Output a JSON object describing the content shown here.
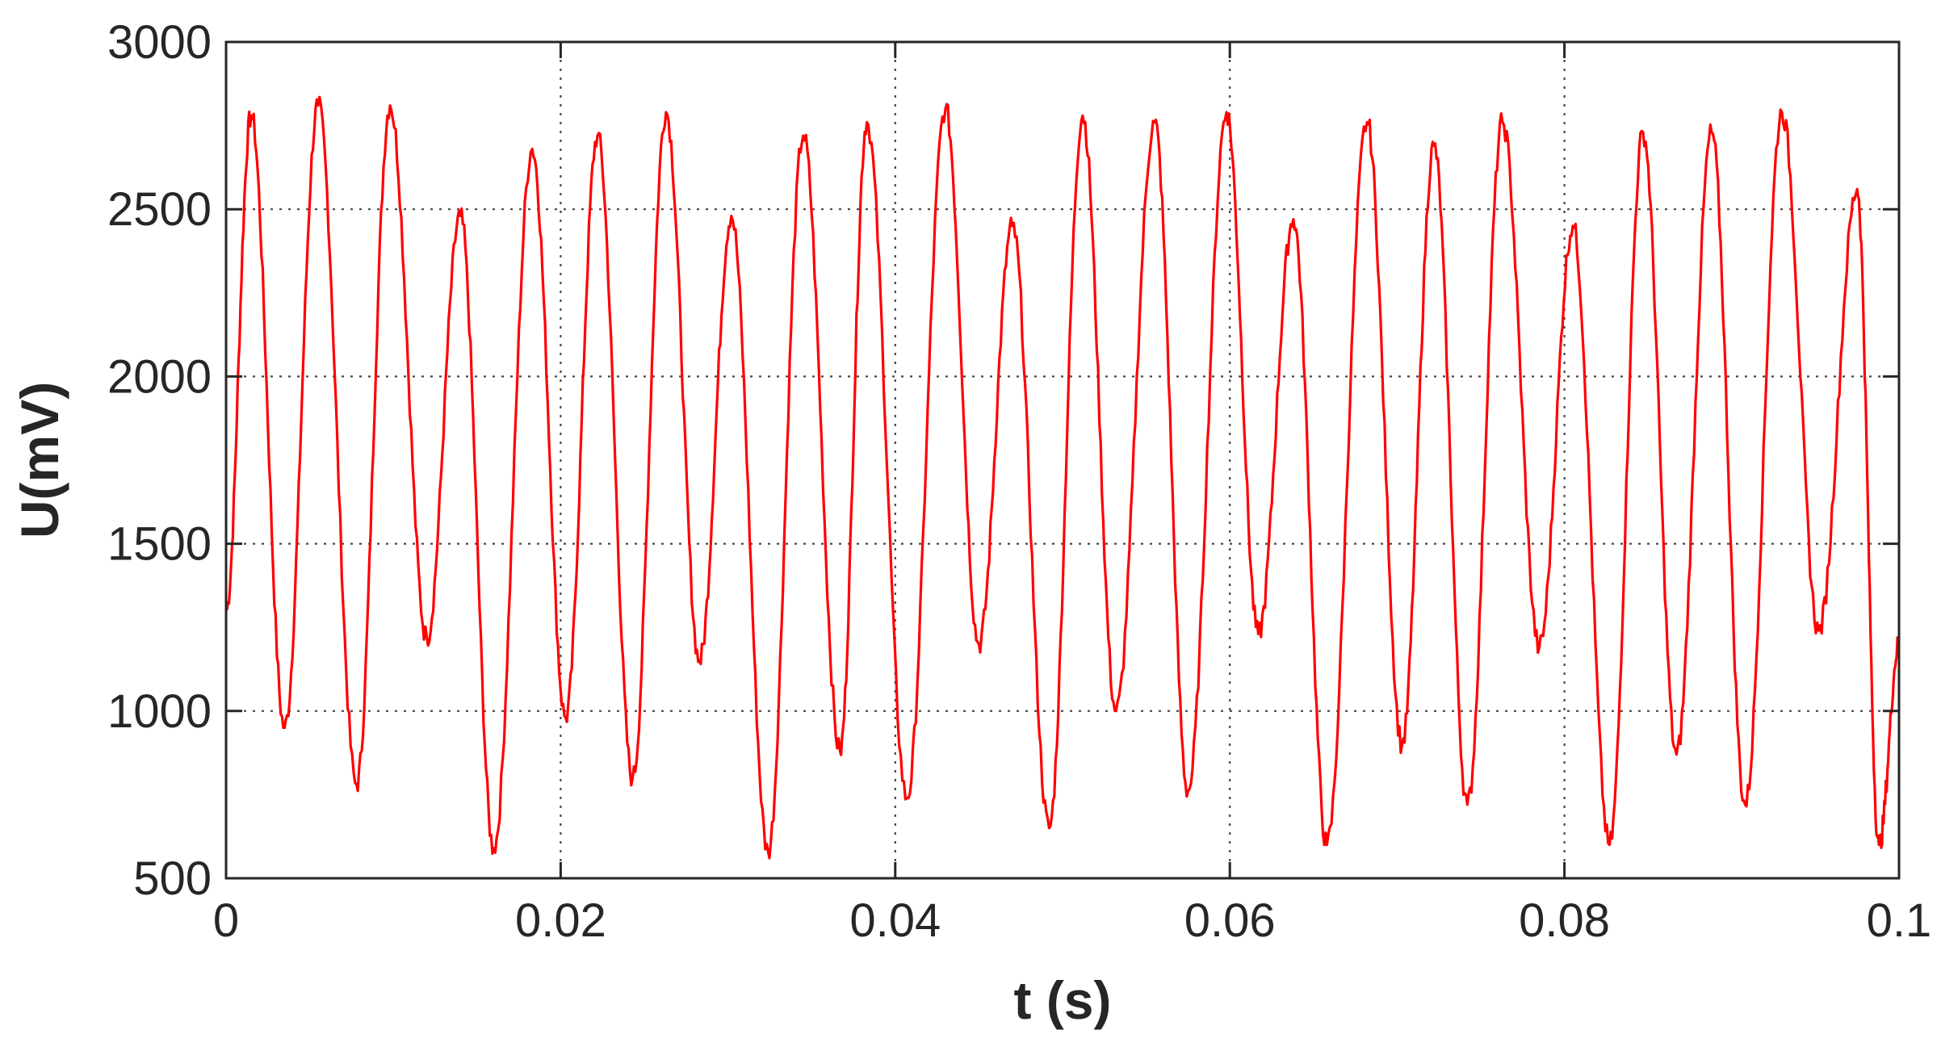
{
  "chart_data": {
    "type": "line",
    "title": "",
    "xlabel": "t (s)",
    "ylabel": "U(mV)",
    "xlim": [
      0,
      0.1
    ],
    "ylim": [
      500,
      3000
    ],
    "xticks": [
      0,
      0.02,
      0.04,
      0.06,
      0.08,
      0.1
    ],
    "xtick_labels": [
      "0",
      "0.02",
      "0.04",
      "0.06",
      "0.08",
      "0.1"
    ],
    "yticks": [
      500,
      1000,
      1500,
      2000,
      2500,
      3000
    ],
    "ytick_labels": [
      "500",
      "1000",
      "1500",
      "2000",
      "2500",
      "3000"
    ],
    "grid": true,
    "legend": "none",
    "series": [
      {
        "color": "#ff0000",
        "x": [
          0,
          0.0015,
          0.0035,
          0.0055,
          0.0078,
          0.0098,
          0.012,
          0.014,
          0.016,
          0.0183,
          0.0203,
          0.0222,
          0.0243,
          0.0263,
          0.0283,
          0.0302,
          0.0324,
          0.0345,
          0.0367,
          0.0383,
          0.0407,
          0.043,
          0.045,
          0.047,
          0.0492,
          0.0512,
          0.0532,
          0.0555,
          0.0575,
          0.0598,
          0.0617,
          0.0638,
          0.0658,
          0.0682,
          0.0703,
          0.0722,
          0.0742,
          0.0763,
          0.0785,
          0.0805,
          0.0827,
          0.0847,
          0.0867,
          0.0888,
          0.0908,
          0.093,
          0.0952,
          0.0975,
          0.0988,
          0.1
        ],
        "y": [
          1300,
          2780,
          950,
          2810,
          780,
          2810,
          1220,
          2480,
          590,
          2680,
          980,
          2720,
          800,
          2790,
          1150,
          2480,
          580,
          2720,
          880,
          2760,
          740,
          2800,
          1200,
          2450,
          650,
          2780,
          1000,
          2760,
          760,
          2790,
          1230,
          2470,
          600,
          2760,
          900,
          2690,
          720,
          2760,
          1190,
          2450,
          600,
          2730,
          870,
          2730,
          720,
          2790,
          1240,
          2560,
          600,
          1200
        ]
      }
    ]
  }
}
